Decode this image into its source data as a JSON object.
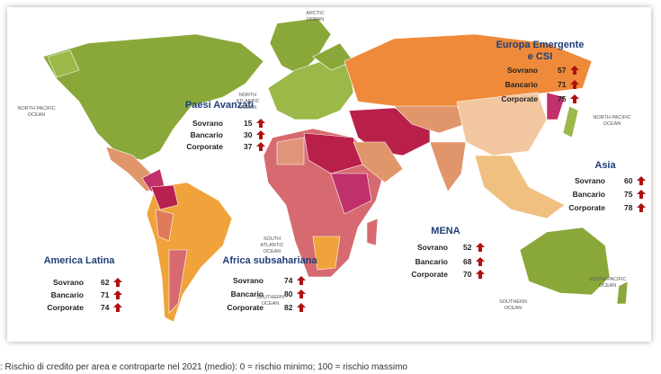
{
  "regions": [
    {
      "title": "Paesi Avanzati",
      "rows": [
        {
          "label": "Sovrano",
          "value": 15
        },
        {
          "label": "Bancario",
          "value": 30
        },
        {
          "label": "Corporate",
          "value": 37
        }
      ]
    },
    {
      "title": "Europa Emergente e CSI",
      "rows": [
        {
          "label": "Sovrano",
          "value": 57
        },
        {
          "label": "Bancario",
          "value": 71
        },
        {
          "label": "Corporate",
          "value": 75
        }
      ]
    },
    {
      "title": "Asia",
      "rows": [
        {
          "label": "Sovrano",
          "value": 60
        },
        {
          "label": "Bancario",
          "value": 75
        },
        {
          "label": "Corporate",
          "value": 78
        }
      ]
    },
    {
      "title": "MENA",
      "rows": [
        {
          "label": "Sovrano",
          "value": 52
        },
        {
          "label": "Bancario",
          "value": 68
        },
        {
          "label": "Corporate",
          "value": 70
        }
      ]
    },
    {
      "title": "America Latina",
      "rows": [
        {
          "label": "Sovrano",
          "value": 62
        },
        {
          "label": "Bancario",
          "value": 71
        },
        {
          "label": "Corporate",
          "value": 74
        }
      ]
    },
    {
      "title": "Africa subsahariana",
      "rows": [
        {
          "label": "Sovrano",
          "value": 74
        },
        {
          "label": "Bancario",
          "value": 80
        },
        {
          "label": "Corporate",
          "value": 82
        }
      ]
    }
  ],
  "oceans": [
    "NORTH PACIFIC OCEAN",
    "NORTH ATLANTIC OCEAN",
    "SOUTH ATLANTIC OCEAN",
    "SOUTHERN OCEAN",
    "SOUTHERN OCEAN",
    "NORTH PACIFIC OCEAN",
    "SOUTH PACIFIC OCEAN",
    "ARCTIC OCEAN"
  ],
  "caption": ": Rischio di credito per area e controparte nel 2021 (medio): 0 = rischio minimo; 100 = rischio massimo"
}
